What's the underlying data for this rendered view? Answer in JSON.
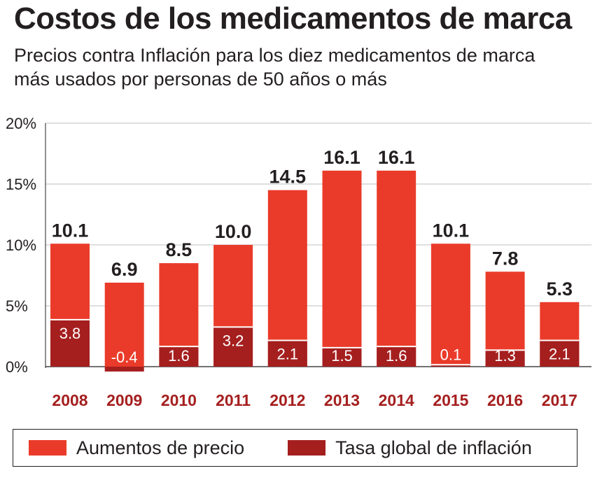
{
  "title": "Costos de los medicamentos de marca",
  "subtitle": "Precios contra Inflación para los diez medicamentos de marca más usados por personas de 50 años o más",
  "colors": {
    "price": "#ea3b2a",
    "inflation": "#a51f1f",
    "year_label": "#a51f1f",
    "grid": "#bfbfbf"
  },
  "legend": {
    "price_label": "Aumentos de precio",
    "inflation_label": "Tasa global de inflación"
  },
  "chart_data": {
    "type": "bar",
    "stacking": "overlaid",
    "categories": [
      "2008",
      "2009",
      "2010",
      "2011",
      "2012",
      "2013",
      "2014",
      "2015",
      "2016",
      "2017"
    ],
    "series": [
      {
        "name": "Aumentos de precio",
        "values": [
          10.1,
          6.9,
          8.5,
          10.0,
          14.5,
          16.1,
          16.1,
          10.1,
          7.8,
          5.3
        ],
        "labels": [
          "10.1",
          "6.9",
          "8.5",
          "10.0",
          "14.5",
          "16.1",
          "16.1",
          "10.1",
          "7.8",
          "5.3"
        ]
      },
      {
        "name": "Tasa global de inflación",
        "values": [
          3.8,
          -0.4,
          1.6,
          3.2,
          2.1,
          1.5,
          1.6,
          0.1,
          1.3,
          2.1
        ],
        "labels": [
          "3.8",
          "-0.4",
          "1.6",
          "3.2",
          "2.1",
          "1.5",
          "1.6",
          "0.1",
          "1.3",
          "2.1"
        ]
      }
    ],
    "yticks": [
      "0%",
      "5%",
      "10%",
      "15%",
      "20%"
    ],
    "ytick_values": [
      0,
      5,
      10,
      15,
      20
    ],
    "ylim": [
      -1,
      20
    ],
    "grid": true,
    "legend_position": "bottom"
  }
}
